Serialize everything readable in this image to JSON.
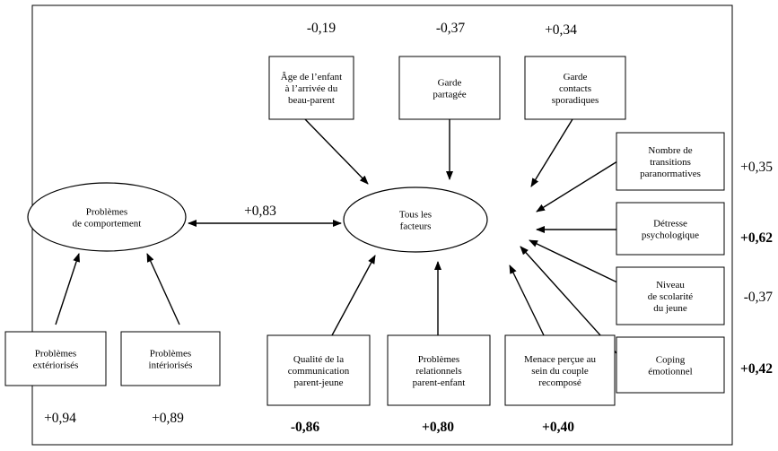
{
  "central_node": {
    "lines": [
      "Tous les",
      "facteurs"
    ]
  },
  "outcome_node": {
    "lines": [
      "Problèmes",
      "de comportement"
    ]
  },
  "link_coefficient": "+0,83",
  "top_factors": [
    {
      "lines": [
        "Âge de l’enfant",
        "à l’arrivée du",
        "beau-parent"
      ],
      "coef": "-0,19",
      "bold": false
    },
    {
      "lines": [
        "Garde",
        "partagée"
      ],
      "coef": "-0,37",
      "bold": false
    },
    {
      "lines": [
        "Garde",
        "contacts",
        "sporadiques"
      ],
      "coef": "+0,34",
      "bold": false
    }
  ],
  "right_factors": [
    {
      "lines": [
        "Nombre de",
        "transitions",
        "paranormatives"
      ],
      "coef": "+0,35",
      "bold": false
    },
    {
      "lines": [
        "Détresse",
        "psychologique"
      ],
      "coef": "+0,62",
      "bold": true
    },
    {
      "lines": [
        "Niveau",
        "de scolarité",
        "du jeune"
      ],
      "coef": "-0,37",
      "bold": false
    },
    {
      "lines": [
        "Coping",
        "émotionnel"
      ],
      "coef": "+0,42",
      "bold": true
    }
  ],
  "bottom_factors": [
    {
      "lines": [
        "Qualité de la",
        "communication",
        "parent-jeune"
      ],
      "coef": "-0,86",
      "bold": true
    },
    {
      "lines": [
        "Problèmes",
        "relationnels",
        "parent-enfant"
      ],
      "coef": "+0,80",
      "bold": true
    },
    {
      "lines": [
        "Menace perçue au",
        "sein du couple",
        "recomposé"
      ],
      "coef": "+0,40",
      "bold": true
    }
  ],
  "left_factors": [
    {
      "lines": [
        "Problèmes",
        "extériorisés"
      ],
      "coef": "+0,94",
      "bold": false
    },
    {
      "lines": [
        "Problèmes",
        "intériorisés"
      ],
      "coef": "+0,89",
      "bold": false
    }
  ]
}
